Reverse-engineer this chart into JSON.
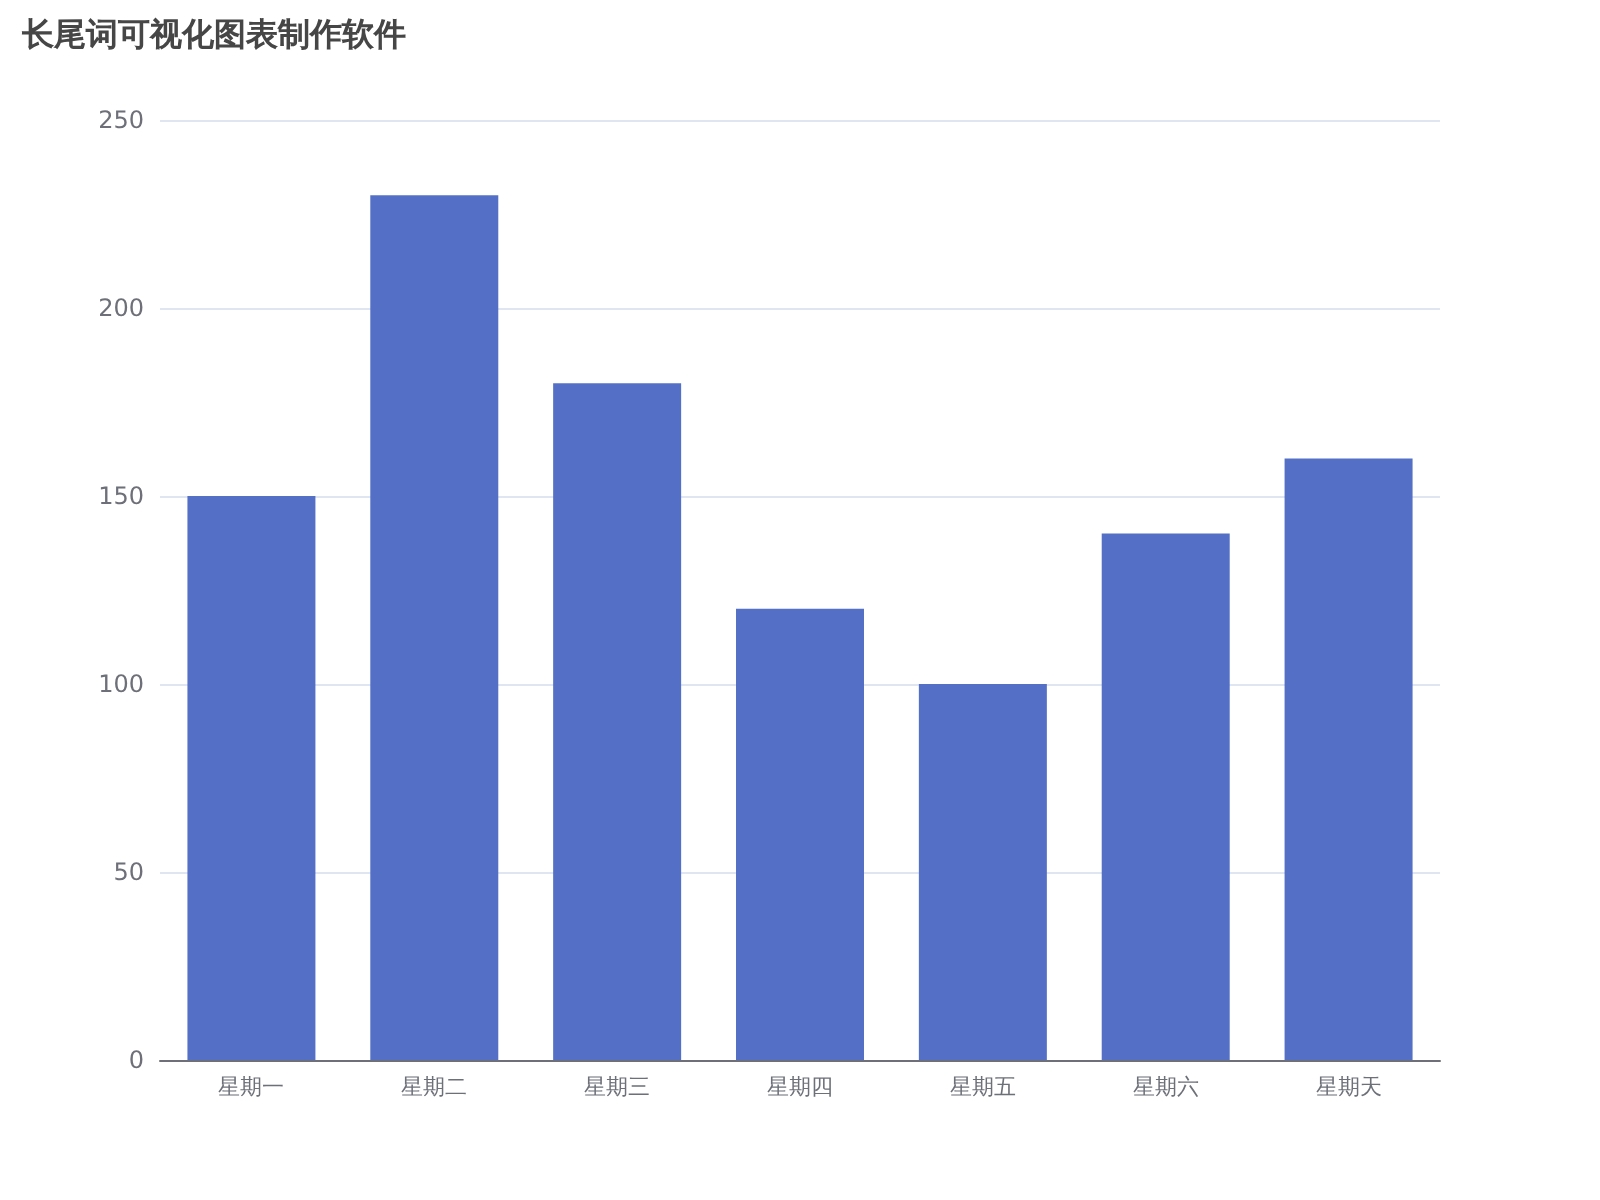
{
  "chart_data": {
    "type": "bar",
    "title": "长尾词可视化图表制作软件",
    "categories": [
      "星期一",
      "星期二",
      "星期三",
      "星期四",
      "星期五",
      "星期六",
      "星期天"
    ],
    "values": [
      150,
      230,
      180,
      120,
      100,
      140,
      160
    ],
    "color": "#5470c6",
    "ylim": [
      0,
      250
    ],
    "yticks": [
      0,
      50,
      100,
      150,
      200,
      250
    ],
    "grid": "y"
  }
}
